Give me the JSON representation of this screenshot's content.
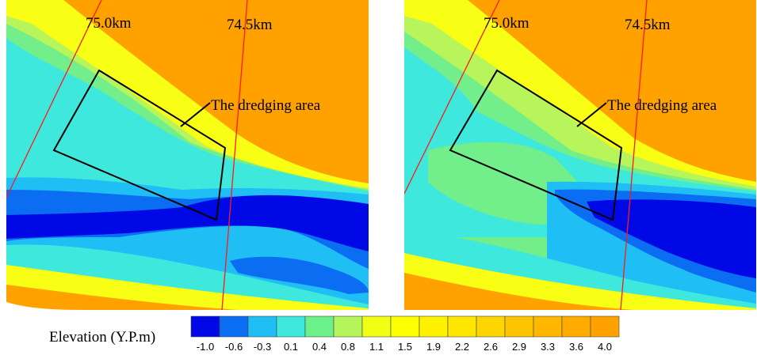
{
  "chart_data": {
    "type": "heatmap",
    "panels": [
      {
        "km_lines": [
          "75.0km",
          "74.5km"
        ],
        "annotation": "The dredging area"
      },
      {
        "km_lines": [
          "75.0km",
          "74.5km"
        ],
        "annotation": "The dredging area"
      }
    ],
    "colorbar": {
      "title": "Elevation (Y.P.m)",
      "ticks": [
        "-1.0",
        "-0.6",
        "-0.3",
        "0.1",
        "0.4",
        "0.8",
        "1.1",
        "1.5",
        "1.9",
        "2.2",
        "2.6",
        "2.9",
        "3.3",
        "3.6",
        "4.0"
      ],
      "colors": [
        "#0008e6",
        "#0a6df2",
        "#1fbff5",
        "#3ee8dd",
        "#6cf08a",
        "#b3f55a",
        "#f0ff14",
        "#fbff00",
        "#fff200",
        "#ffe600",
        "#ffd500",
        "#ffc500",
        "#ffb700",
        "#ffab00",
        "#ffa200"
      ]
    },
    "palette": {
      "deep": "#0008e6",
      "mid_blue": "#0a6df2",
      "light_blue": "#1fbff5",
      "cyan": "#3ee8dd",
      "green": "#6cf08a",
      "lime": "#b3f55a",
      "yellow": "#f0ff14",
      "orange": "#ffa200",
      "km_line": "#ff1a1a",
      "outline": "#000000"
    }
  }
}
